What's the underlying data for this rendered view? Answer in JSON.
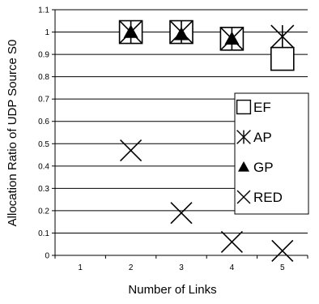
{
  "chart_data": {
    "type": "scatter",
    "xlabel": "Number of Links",
    "ylabel": "Allocation Ratio of UDP Source S0",
    "x_ticks": [
      "1",
      "2",
      "3",
      "4",
      "5"
    ],
    "y_ticks": [
      "0",
      "0.1",
      "0.2",
      "0.3",
      "0.4",
      "0.5",
      "0.6",
      "0.7",
      "0.8",
      "0.9",
      "1",
      "1.1"
    ],
    "xlim": [
      0.5,
      5.5
    ],
    "ylim": [
      0,
      1.1
    ],
    "grid": "horizontal",
    "legend_position": "right",
    "series": [
      {
        "name": "EF",
        "marker": "square",
        "points": [
          [
            2,
            1.0
          ],
          [
            3,
            1.0
          ],
          [
            4,
            0.97
          ],
          [
            5,
            0.88
          ]
        ]
      },
      {
        "name": "AP",
        "marker": "asterisk",
        "points": [
          [
            2,
            1.0
          ],
          [
            3,
            1.0
          ],
          [
            4,
            0.97
          ],
          [
            5,
            0.98
          ]
        ]
      },
      {
        "name": "GP",
        "marker": "triangle",
        "points": [
          [
            2,
            1.0
          ],
          [
            3,
            0.99
          ],
          [
            4,
            0.97
          ]
        ]
      },
      {
        "name": "RED",
        "marker": "x",
        "points": [
          [
            2,
            0.47
          ],
          [
            3,
            0.19
          ],
          [
            4,
            0.06
          ],
          [
            5,
            0.02
          ]
        ]
      }
    ]
  }
}
